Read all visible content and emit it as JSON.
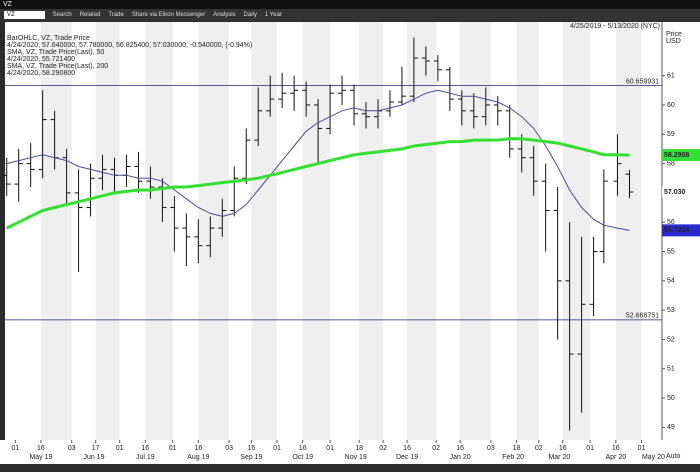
{
  "window_title": "VZ",
  "toolbar": {
    "symbol": "VZ",
    "items": [
      "Search",
      "Related",
      "Trade",
      "Share via Eikon Messenger",
      "Analysis",
      "Daily",
      "1 Year"
    ]
  },
  "chart_data": {
    "type": "ohlc",
    "date_range": "4/25/2019 - 5/13/2020 (NYC)",
    "axis_label": [
      "Price",
      "USD"
    ],
    "scale_mode": "Auto",
    "xlim": [
      "2019-04-25",
      "2020-05-13"
    ],
    "ylim": [
      48.57,
      62.83
    ],
    "yticks": [
      49,
      50,
      51,
      52,
      53,
      54,
      55,
      56,
      57,
      58,
      59,
      60,
      61
    ],
    "xticks": [
      {
        "value": "2019-05-01",
        "label": "01"
      },
      {
        "value": "2019-05-16",
        "label": "16"
      },
      {
        "value": "2019-06-03",
        "label": "03"
      },
      {
        "value": "2019-06-17",
        "label": "17"
      },
      {
        "value": "2019-07-01",
        "label": "01"
      },
      {
        "value": "2019-07-16",
        "label": "16"
      },
      {
        "value": "2019-08-01",
        "label": "01"
      },
      {
        "value": "2019-08-16",
        "label": "16"
      },
      {
        "value": "2019-09-03",
        "label": "03"
      },
      {
        "value": "2019-09-16",
        "label": "16"
      },
      {
        "value": "2019-10-01",
        "label": "01"
      },
      {
        "value": "2019-10-16",
        "label": "16"
      },
      {
        "value": "2019-11-01",
        "label": "01"
      },
      {
        "value": "2019-11-18",
        "label": "18"
      },
      {
        "value": "2019-12-02",
        "label": "02"
      },
      {
        "value": "2019-12-16",
        "label": "16"
      },
      {
        "value": "2020-01-02",
        "label": "02"
      },
      {
        "value": "2020-01-16",
        "label": "16"
      },
      {
        "value": "2020-02-03",
        "label": "03"
      },
      {
        "value": "2020-02-18",
        "label": "18"
      },
      {
        "value": "2020-03-02",
        "label": "02"
      },
      {
        "value": "2020-03-16",
        "label": "16"
      },
      {
        "value": "2020-04-01",
        "label": "01"
      },
      {
        "value": "2020-04-16",
        "label": "16"
      },
      {
        "value": "2020-05-01",
        "label": "01"
      }
    ],
    "months": [
      {
        "value": "2019-05-16",
        "label": "May 19"
      },
      {
        "value": "2019-06-16",
        "label": "Jun 19"
      },
      {
        "value": "2019-07-16",
        "label": "Jul 19"
      },
      {
        "value": "2019-08-16",
        "label": "Aug 19"
      },
      {
        "value": "2019-09-16",
        "label": "Sep 19"
      },
      {
        "value": "2019-10-16",
        "label": "Oct 19"
      },
      {
        "value": "2019-11-16",
        "label": "Nov 19"
      },
      {
        "value": "2019-12-16",
        "label": "Dec 19"
      },
      {
        "value": "2020-01-16",
        "label": "Jan 20"
      },
      {
        "value": "2020-02-16",
        "label": "Feb 20"
      },
      {
        "value": "2020-03-14",
        "label": "Mar 20"
      },
      {
        "value": "2020-04-16",
        "label": "Apr 20"
      },
      {
        "value": "2020-05-08",
        "label": "May 20"
      }
    ],
    "hlines": [
      60.659931,
      52.668751
    ],
    "hline_color": "#22227a",
    "x": [
      "2019-04-26",
      "2019-05-03",
      "2019-05-10",
      "2019-05-17",
      "2019-05-24",
      "2019-05-31",
      "2019-06-07",
      "2019-06-14",
      "2019-06-21",
      "2019-06-28",
      "2019-07-05",
      "2019-07-12",
      "2019-07-19",
      "2019-07-26",
      "2019-08-02",
      "2019-08-09",
      "2019-08-16",
      "2019-08-23",
      "2019-08-30",
      "2019-09-06",
      "2019-09-13",
      "2019-09-20",
      "2019-09-27",
      "2019-10-04",
      "2019-10-11",
      "2019-10-18",
      "2019-10-25",
      "2019-11-01",
      "2019-11-08",
      "2019-11-15",
      "2019-11-22",
      "2019-11-29",
      "2019-12-06",
      "2019-12-13",
      "2019-12-20",
      "2019-12-27",
      "2020-01-03",
      "2020-01-10",
      "2020-01-17",
      "2020-01-24",
      "2020-01-31",
      "2020-02-07",
      "2020-02-14",
      "2020-02-21",
      "2020-02-28",
      "2020-03-06",
      "2020-03-13",
      "2020-03-20",
      "2020-03-27",
      "2020-04-03",
      "2020-04-09",
      "2020-04-17",
      "2020-04-24"
    ],
    "ohlc": {
      "name": "BarOHLC, VZ, Trade Price",
      "color": "#111111",
      "legend_value": "4/24/2020, 57.640000, 57.780000, 56.825400, 57.030000, -0.540000, (-0.94%)",
      "open": [
        57.6,
        57.3,
        58.0,
        57.8,
        59.5,
        58.2,
        57.0,
        56.5,
        57.5,
        57.8,
        57.6,
        57.9,
        57.4,
        57.2,
        56.5,
        55.8,
        55.5,
        55.2,
        55.8,
        56.4,
        57.5,
        58.8,
        59.8,
        60.2,
        60.4,
        60.5,
        60.0,
        59.2,
        60.4,
        60.5,
        59.7,
        59.6,
        59.8,
        60.1,
        60.3,
        61.6,
        61.5,
        61.2,
        60.2,
        59.8,
        59.6,
        60.0,
        59.8,
        58.5,
        58.2,
        57.4,
        56.4,
        54.0,
        51.5,
        53.2,
        55.0,
        57.4,
        57.64
      ],
      "high": [
        58.2,
        58.5,
        58.7,
        60.5,
        59.8,
        58.5,
        57.8,
        58.0,
        58.3,
        58.2,
        58.3,
        58.4,
        57.9,
        57.5,
        56.9,
        56.3,
        56.1,
        56.2,
        56.8,
        57.9,
        59.2,
        60.6,
        61.0,
        61.1,
        61.0,
        60.8,
        60.2,
        60.7,
        61.0,
        60.7,
        60.1,
        60.2,
        60.5,
        61.3,
        62.3,
        62.0,
        61.7,
        61.3,
        60.5,
        60.4,
        60.6,
        60.3,
        60.0,
        59.0,
        58.6,
        58.0,
        57.2,
        56.0,
        55.5,
        55.5,
        57.8,
        59.0,
        57.78
      ],
      "low": [
        56.9,
        56.7,
        57.2,
        57.5,
        57.8,
        56.6,
        54.3,
        56.2,
        57.1,
        57.0,
        57.2,
        57.0,
        56.8,
        56.0,
        55.0,
        54.5,
        54.6,
        54.8,
        55.5,
        56.2,
        57.3,
        58.6,
        59.6,
        59.9,
        59.8,
        59.6,
        58.0,
        59.0,
        60.0,
        59.3,
        59.2,
        59.2,
        59.6,
        60.0,
        60.1,
        61.0,
        60.8,
        59.8,
        59.3,
        59.2,
        59.3,
        59.3,
        58.2,
        57.7,
        56.9,
        55.0,
        52.0,
        48.9,
        49.5,
        52.8,
        54.6,
        56.9,
        56.8254
      ],
      "close": [
        57.3,
        58.0,
        57.8,
        59.5,
        58.2,
        57.0,
        56.5,
        57.5,
        57.8,
        57.6,
        57.9,
        57.4,
        57.2,
        56.5,
        55.8,
        55.5,
        55.2,
        55.8,
        56.4,
        57.5,
        58.8,
        59.8,
        60.2,
        60.4,
        60.5,
        60.0,
        59.2,
        60.4,
        60.5,
        59.7,
        59.6,
        59.8,
        60.1,
        60.3,
        61.6,
        61.5,
        61.2,
        60.2,
        59.8,
        59.6,
        60.0,
        59.8,
        58.5,
        58.2,
        57.4,
        56.4,
        54.0,
        51.5,
        53.2,
        55.0,
        57.4,
        58.0,
        57.03
      ]
    },
    "series": [
      {
        "name": "SMA, VZ, Trade Price(Last), 50",
        "legend_value": "4/24/2020, 55.721400",
        "color": "#4a4aa0",
        "width": 1,
        "values": [
          58.0,
          58.1,
          58.2,
          58.3,
          58.2,
          58.1,
          57.9,
          57.8,
          57.7,
          57.6,
          57.6,
          57.5,
          57.5,
          57.4,
          57.1,
          56.8,
          56.5,
          56.3,
          56.2,
          56.3,
          56.6,
          57.1,
          57.6,
          58.1,
          58.6,
          59.1,
          59.4,
          59.6,
          59.8,
          59.9,
          59.8,
          59.8,
          59.9,
          60.0,
          60.2,
          60.4,
          60.5,
          60.4,
          60.3,
          60.3,
          60.2,
          60.1,
          59.9,
          59.6,
          59.2,
          58.6,
          57.9,
          57.1,
          56.5,
          56.1,
          55.9,
          55.8,
          55.7214
        ]
      },
      {
        "name": "SMA, VZ, Trade Price(Last), 200",
        "legend_value": "4/24/2020, 58.290800",
        "color": "#33e033",
        "width": 3,
        "values": [
          55.8,
          56.0,
          56.2,
          56.4,
          56.5,
          56.6,
          56.7,
          56.8,
          56.9,
          57.0,
          57.05,
          57.1,
          57.1,
          57.15,
          57.2,
          57.2,
          57.25,
          57.3,
          57.35,
          57.4,
          57.45,
          57.5,
          57.6,
          57.7,
          57.8,
          57.9,
          58.0,
          58.1,
          58.2,
          58.3,
          58.35,
          58.4,
          58.45,
          58.5,
          58.6,
          58.65,
          58.7,
          58.75,
          58.75,
          58.8,
          58.8,
          58.8,
          58.85,
          58.85,
          58.8,
          58.75,
          58.7,
          58.6,
          58.5,
          58.4,
          58.3,
          58.3,
          58.2908
        ]
      }
    ],
    "price_tags": [
      {
        "value": 58.2908,
        "color": "#33e033"
      },
      {
        "value": 57.03,
        "label": "57.030",
        "color": "#ffffff"
      },
      {
        "value": 55.7214,
        "color": "#2a2ad0"
      }
    ]
  }
}
